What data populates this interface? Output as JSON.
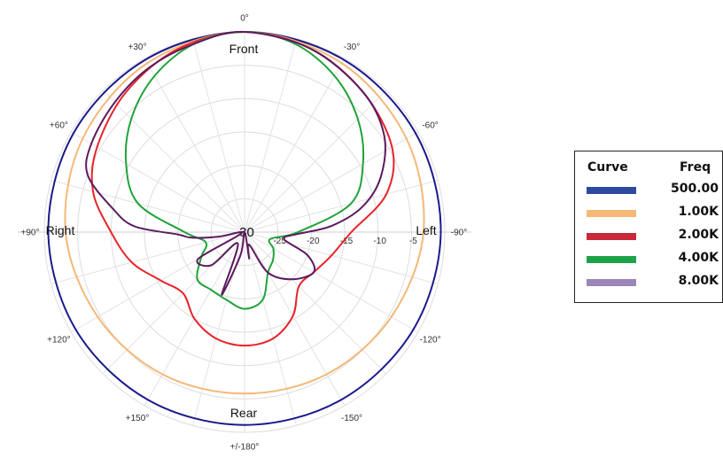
{
  "chart_data": {
    "type": "polar",
    "angle_labels": [
      {
        "angle": 0,
        "text": "0°"
      },
      {
        "angle": -30,
        "text": "-30°"
      },
      {
        "angle": -60,
        "text": "-60°"
      },
      {
        "angle": -90,
        "text": "-90°"
      },
      {
        "angle": -120,
        "text": "-120°"
      },
      {
        "angle": -150,
        "text": "-150°"
      },
      {
        "angle": 180,
        "text": "+/-180°"
      },
      {
        "angle": 150,
        "text": "+150°"
      },
      {
        "angle": 120,
        "text": "+120°"
      },
      {
        "angle": 90,
        "text": "+90°"
      },
      {
        "angle": 60,
        "text": "+60°"
      },
      {
        "angle": 30,
        "text": "+30°"
      }
    ],
    "radial_range": [
      -30,
      0
    ],
    "ring_labels": [
      "-30",
      "-25",
      "-20",
      "-15",
      "-10",
      "-5"
    ],
    "direction_labels": {
      "front": "Front",
      "rear": "Rear",
      "right": "Right",
      "left": "Left"
    },
    "grid": true,
    "legend": {
      "position": "right",
      "header_curve": "Curve",
      "header_freq": "Freq"
    },
    "series": [
      {
        "name": "500.00",
        "color": "#1a1a8c",
        "points": [
          [
            0,
            0
          ],
          [
            30,
            -0.2
          ],
          [
            60,
            -0.4
          ],
          [
            90,
            -0.6
          ],
          [
            120,
            -0.8
          ],
          [
            150,
            -1.0
          ],
          [
            180,
            -1.1
          ],
          [
            -150,
            -1.0
          ],
          [
            -120,
            -0.8
          ],
          [
            -90,
            -0.6
          ],
          [
            -60,
            -0.4
          ],
          [
            -30,
            -0.2
          ]
        ]
      },
      {
        "name": "1.00K",
        "color": "#f5b877",
        "points": [
          [
            0,
            0
          ],
          [
            30,
            -0.8
          ],
          [
            60,
            -2.0
          ],
          [
            90,
            -3.2
          ],
          [
            120,
            -4.6
          ],
          [
            150,
            -5.4
          ],
          [
            180,
            -5.8
          ],
          [
            -150,
            -5.4
          ],
          [
            -120,
            -4.6
          ],
          [
            -90,
            -3.2
          ],
          [
            -60,
            -2.0
          ],
          [
            -30,
            -0.8
          ]
        ]
      },
      {
        "name": "2.00K",
        "color": "#e8232a",
        "points": [
          [
            0,
            0
          ],
          [
            20,
            -0.8
          ],
          [
            40,
            -2.5
          ],
          [
            60,
            -4.5
          ],
          [
            75,
            -6.5
          ],
          [
            90,
            -10
          ],
          [
            105,
            -12.5
          ],
          [
            120,
            -15.5
          ],
          [
            135,
            -17
          ],
          [
            150,
            -15
          ],
          [
            165,
            -13.5
          ],
          [
            180,
            -13
          ],
          [
            -165,
            -13.5
          ],
          [
            -150,
            -15.5
          ],
          [
            -135,
            -18.5
          ],
          [
            -120,
            -18
          ],
          [
            -105,
            -16.5
          ],
          [
            -90,
            -14
          ],
          [
            -75,
            -8
          ],
          [
            -60,
            -4.5
          ],
          [
            -40,
            -2.5
          ],
          [
            -20,
            -0.8
          ]
        ]
      },
      {
        "name": "4.00K",
        "color": "#1fa33a",
        "points": [
          [
            0,
            0
          ],
          [
            15,
            -0.8
          ],
          [
            30,
            -3
          ],
          [
            45,
            -6
          ],
          [
            60,
            -9.5
          ],
          [
            75,
            -13.5
          ],
          [
            90,
            -21
          ],
          [
            105,
            -24
          ],
          [
            120,
            -22.5
          ],
          [
            135,
            -20
          ],
          [
            150,
            -20
          ],
          [
            165,
            -19.5
          ],
          [
            180,
            -18.5
          ],
          [
            -165,
            -19.5
          ],
          [
            -150,
            -23
          ],
          [
            -135,
            -24
          ],
          [
            -120,
            -25
          ],
          [
            -105,
            -26
          ],
          [
            -90,
            -22
          ],
          [
            -75,
            -13.5
          ],
          [
            -60,
            -9.5
          ],
          [
            -45,
            -6
          ],
          [
            -30,
            -3
          ],
          [
            -15,
            -0.8
          ]
        ]
      },
      {
        "name": "8.00K",
        "color": "#5c1a5e",
        "points": [
          [
            0,
            0
          ],
          [
            15,
            -0.8
          ],
          [
            30,
            -1.5
          ],
          [
            45,
            -2.5
          ],
          [
            60,
            -3.5
          ],
          [
            70,
            -5
          ],
          [
            80,
            -10
          ],
          [
            87,
            -13.5
          ],
          [
            92,
            -20
          ],
          [
            96,
            -22
          ],
          [
            100,
            -26
          ],
          [
            110,
            -29.5
          ],
          [
            120,
            -22
          ],
          [
            135,
            -23
          ],
          [
            150,
            -28
          ],
          [
            160,
            -20
          ],
          [
            170,
            -26.5
          ],
          [
            180,
            -30
          ],
          [
            -170,
            -26
          ],
          [
            -160,
            -28
          ],
          [
            -150,
            -23
          ],
          [
            -135,
            -20
          ],
          [
            -120,
            -18
          ],
          [
            -110,
            -20
          ],
          [
            -100,
            -24
          ],
          [
            -92,
            -22
          ],
          [
            -86,
            -17
          ],
          [
            -78,
            -12
          ],
          [
            -68,
            -8
          ],
          [
            -55,
            -4.5
          ],
          [
            -40,
            -2.5
          ],
          [
            -20,
            -0.8
          ]
        ]
      }
    ]
  }
}
